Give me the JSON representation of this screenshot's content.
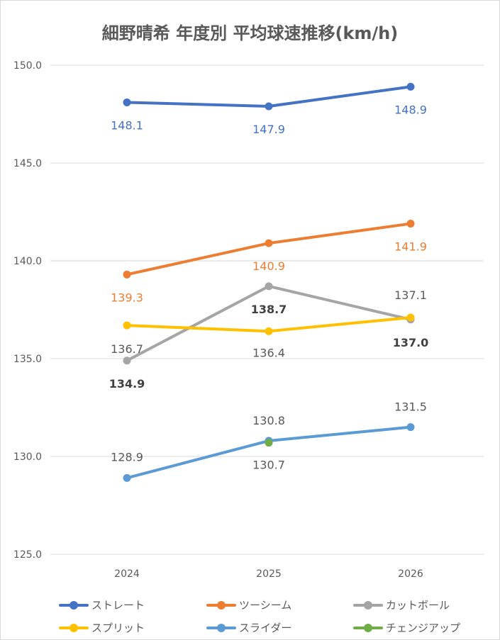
{
  "chart_data": {
    "type": "line",
    "title": "細野晴希 年度別 平均球速推移(km/h)",
    "xlabel": "",
    "ylabel": "",
    "categories": [
      "2024",
      "2025",
      "2026"
    ],
    "ylim": [
      125,
      150
    ],
    "yticks": [
      "125.0",
      "130.0",
      "135.0",
      "140.0",
      "145.0",
      "150.0"
    ],
    "grid": true,
    "legend_position": "bottom",
    "series": [
      {
        "name": "ストレート",
        "color": "#4472C4",
        "label_color": "#4472C4",
        "values": [
          148.1,
          147.9,
          148.9
        ],
        "labels": [
          "148.1",
          "147.9",
          "148.9"
        ]
      },
      {
        "name": "ツーシーム",
        "color": "#ED7D31",
        "label_color": "#ED7D31",
        "values": [
          139.3,
          140.9,
          141.9
        ],
        "labels": [
          "139.3",
          "140.9",
          "141.9"
        ]
      },
      {
        "name": "カットボール",
        "color": "#A5A5A5",
        "label_color": "#404040",
        "values": [
          134.9,
          138.7,
          137.0
        ],
        "labels": [
          "134.9",
          "138.7",
          "137.0"
        ]
      },
      {
        "name": "スプリット",
        "color": "#FFC000",
        "label_color": "#595959",
        "values": [
          136.7,
          136.4,
          137.1
        ],
        "labels": [
          "136.7",
          "136.4",
          "137.1"
        ]
      },
      {
        "name": "スライダー",
        "color": "#5B9BD5",
        "label_color": "#595959",
        "values": [
          128.9,
          130.8,
          131.5
        ],
        "labels": [
          "128.9",
          "130.8",
          "131.5"
        ]
      },
      {
        "name": "チェンジアップ",
        "color": "#70AD47",
        "label_color": "#595959",
        "values": [
          null,
          130.7,
          null
        ],
        "labels": [
          null,
          "130.7",
          null
        ]
      }
    ]
  }
}
